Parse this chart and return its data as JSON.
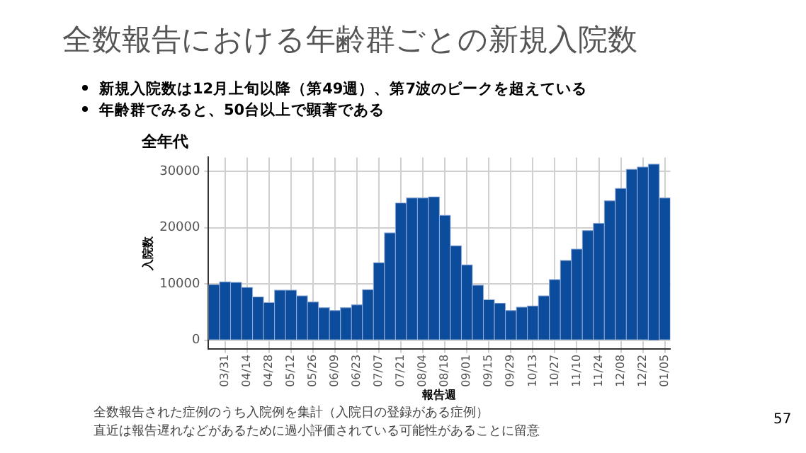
{
  "chart_data": {
    "type": "bar",
    "title": "全数報告における年齢群ごとの新規入院数",
    "subtitle": "全年代",
    "xlabel": "報告週",
    "ylabel": "入院数",
    "categories": [
      null,
      "03/31",
      null,
      "04/14",
      null,
      "04/28",
      null,
      "05/12",
      null,
      "05/26",
      null,
      "06/09",
      null,
      "06/23",
      null,
      "07/07",
      null,
      "07/21",
      null,
      "08/04",
      null,
      "08/18",
      null,
      "09/01",
      null,
      "09/15",
      null,
      "09/29",
      null,
      "10/13",
      null,
      "10/27",
      null,
      "11/10",
      null,
      "11/24",
      null,
      "12/08",
      null,
      "12/22",
      null,
      "01/05"
    ],
    "values": [
      9900,
      10400,
      10300,
      9400,
      7700,
      6700,
      8900,
      8900,
      7900,
      6800,
      5800,
      5300,
      5800,
      6300,
      9000,
      13800,
      19100,
      24400,
      25300,
      25300,
      25500,
      22200,
      16800,
      13400,
      9800,
      7200,
      6600,
      5300,
      5900,
      6100,
      7900,
      10800,
      14200,
      16200,
      19500,
      20800,
      24800,
      27000,
      30400,
      30800,
      31300,
      25300
    ],
    "color": "#0b4c9c",
    "ylim": [
      -1500,
      32500
    ],
    "yticks": [
      0,
      10000,
      20000,
      30000
    ],
    "grid": true,
    "legend": false,
    "annotations": [
      "新規入院数は12月上旬以降（第49週）、第7波のピークを超えている",
      "年齢群でみると、50台以上で顕著である",
      "全数報告された症例のうち入院例を集計（入院日の登録がある症例）",
      "直近は報告遅れなどがあるために過小評価されている可能性があることに留意",
      "57"
    ]
  }
}
